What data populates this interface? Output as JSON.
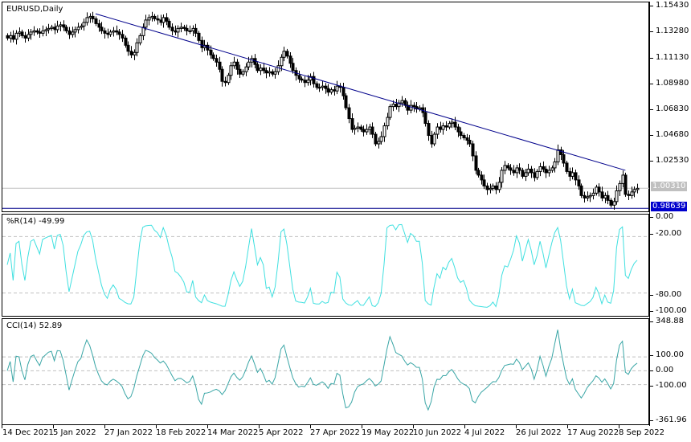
{
  "main": {
    "title": "EURUSD,Daily",
    "price_axis": [
      "1.15430",
      "1.13280",
      "1.11130",
      "1.08980",
      "1.06830",
      "1.04680",
      "1.02530"
    ],
    "current_price": "1.00310",
    "support_price": "0.98639",
    "colors": {
      "trendline": "#00008b",
      "support": "#00008b",
      "current_line": "#c0c0c0",
      "support_tag_bg": "#0000cd",
      "current_tag_bg": "#c0c0c0",
      "candle": "#000000"
    }
  },
  "wpr": {
    "label": "%R(14) -49.99",
    "axis": [
      "0.00",
      "-20.00",
      "-80.00",
      "-100.00"
    ],
    "color": "#40e0e0"
  },
  "cci": {
    "label": "CCI(14) 52.89",
    "axis": [
      "348.88",
      "100.00",
      "0.00",
      "-100.00",
      "-361.96"
    ],
    "color": "#3aa6a6"
  },
  "time_axis": [
    "14 Dec 2021",
    "5 Jan 2022",
    "27 Jan 2022",
    "18 Feb 2022",
    "14 Mar 2022",
    "5 Apr 2022",
    "27 Apr 2022",
    "19 May 2022",
    "10 Jun 2022",
    "4 Jul 2022",
    "26 Jul 2022",
    "17 Aug 2022",
    "8 Sep 2022"
  ],
  "chart_data": [
    {
      "type": "candlestick",
      "title": "EURUSD,Daily",
      "ylim": [
        0.975,
        1.158
      ],
      "y_ticks": [
        1.1543,
        1.1328,
        1.1113,
        1.0898,
        1.0683,
        1.0468,
        1.0253
      ],
      "x_tick_labels": [
        "14 Dec 2021",
        "5 Jan 2022",
        "27 Jan 2022",
        "18 Feb 2022",
        "14 Mar 2022",
        "5 Apr 2022",
        "27 Apr 2022",
        "19 May 2022",
        "10 Jun 2022",
        "4 Jul 2022",
        "26 Jul 2022",
        "17 Aug 2022",
        "8 Sep 2022"
      ],
      "close_approx": [
        1.128,
        1.13,
        1.127,
        1.132,
        1.133,
        1.13,
        1.128,
        1.131,
        1.133,
        1.134,
        1.133,
        1.132,
        1.134,
        1.135,
        1.136,
        1.137,
        1.135,
        1.138,
        1.139,
        1.137,
        1.134,
        1.131,
        1.133,
        1.135,
        1.137,
        1.138,
        1.141,
        1.145,
        1.146,
        1.144,
        1.14,
        1.137,
        1.134,
        1.132,
        1.131,
        1.133,
        1.134,
        1.133,
        1.131,
        1.128,
        1.122,
        1.117,
        1.114,
        1.116,
        1.124,
        1.13,
        1.137,
        1.143,
        1.145,
        1.146,
        1.144,
        1.143,
        1.141,
        1.145,
        1.142,
        1.137,
        1.134,
        1.133,
        1.136,
        1.137,
        1.136,
        1.134,
        1.134,
        1.136,
        1.132,
        1.126,
        1.12,
        1.122,
        1.118,
        1.114,
        1.111,
        1.108,
        1.102,
        1.092,
        1.091,
        1.097,
        1.105,
        1.108,
        1.102,
        1.098,
        1.1,
        1.104,
        1.108,
        1.111,
        1.106,
        1.101,
        1.103,
        1.101,
        1.099,
        1.1,
        1.098,
        1.1,
        1.105,
        1.112,
        1.117,
        1.113,
        1.107,
        1.101,
        1.097,
        1.094,
        1.093,
        1.091,
        1.093,
        1.096,
        1.09,
        1.087,
        1.087,
        1.088,
        1.086,
        1.083,
        1.085,
        1.084,
        1.088,
        1.087,
        1.08,
        1.07,
        1.061,
        1.052,
        1.053,
        1.054,
        1.052,
        1.05,
        1.052,
        1.054,
        1.048,
        1.04,
        1.042,
        1.046,
        1.055,
        1.062,
        1.071,
        1.073,
        1.071,
        1.074,
        1.076,
        1.072,
        1.068,
        1.072,
        1.071,
        1.069,
        1.07,
        1.066,
        1.057,
        1.047,
        1.04,
        1.048,
        1.054,
        1.052,
        1.055,
        1.054,
        1.057,
        1.058,
        1.054,
        1.05,
        1.047,
        1.045,
        1.043,
        1.04,
        1.03,
        1.018,
        1.014,
        1.01,
        1.005,
        1.002,
        1.003,
        1.005,
        1.002,
        1.008,
        1.018,
        1.022,
        1.02,
        1.018,
        1.016,
        1.02,
        1.018,
        1.013,
        1.016,
        1.019,
        1.016,
        1.012,
        1.017,
        1.021,
        1.019,
        1.016,
        1.018,
        1.02,
        1.025,
        1.035,
        1.031,
        1.024,
        1.017,
        1.013,
        1.016,
        1.01,
        1.005,
        0.997,
        0.995,
        0.996,
        0.997,
        0.999,
        1.004,
        1.0,
        0.995,
        0.997,
        0.993,
        0.989,
        0.992,
        1.001,
        1.007,
        1.014,
        0.998,
        0.997,
        1.0,
        1.002,
        1.003
      ],
      "overlays": [
        {
          "name": "trendline",
          "from": {
            "x": "27 Jan 2022",
            "y": 1.1482
          },
          "to": {
            "x": "13 Sep 2022",
            "y": 1.018
          }
        },
        {
          "name": "support",
          "y": 0.98639
        },
        {
          "name": "current",
          "y": 1.0031
        }
      ]
    },
    {
      "type": "line",
      "title": "%R(14)",
      "last_value": -49.99,
      "ylim": [
        -100,
        0
      ],
      "levels": [
        -20,
        -80
      ]
    },
    {
      "type": "line",
      "title": "CCI(14)",
      "last_value": 52.89,
      "ylim": [
        -361.96,
        348.88
      ],
      "levels": [
        100,
        0,
        -100
      ]
    }
  ]
}
